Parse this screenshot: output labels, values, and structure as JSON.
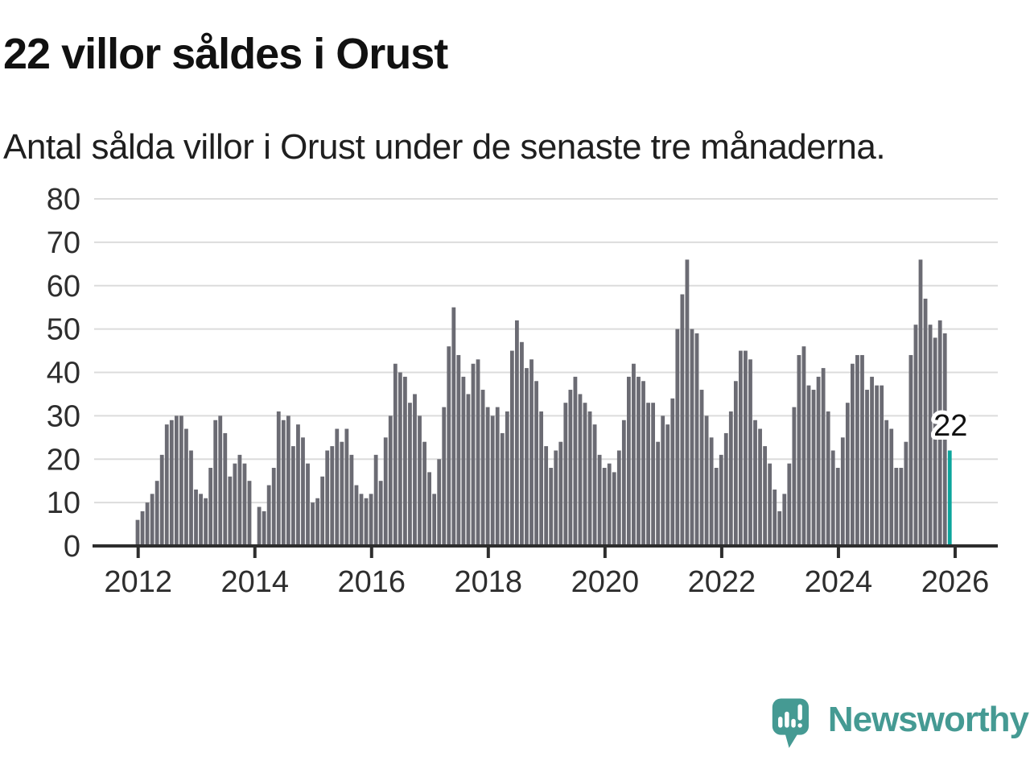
{
  "header": {
    "title": "22 villor såldes i Orust",
    "subtitle": "Antal sålda villor i Orust under de senaste tre månaderna."
  },
  "chart_data": {
    "type": "bar",
    "title": "22 villor såldes i Orust",
    "subtitle": "Antal sålda villor i Orust under de senaste tre månaderna.",
    "x_unit": "month",
    "x_start": "2012-01",
    "x_end": "2025-12",
    "x_tick_labels": [
      "2012",
      "2014",
      "2016",
      "2018",
      "2020",
      "2022",
      "2024",
      "2026"
    ],
    "y_ticks": [
      0,
      10,
      20,
      30,
      40,
      50,
      60,
      70,
      80
    ],
    "ylim": [
      0,
      80
    ],
    "grid": true,
    "legend": false,
    "values": [
      6,
      8,
      10,
      12,
      15,
      21,
      28,
      29,
      30,
      30,
      27,
      22,
      13,
      12,
      11,
      18,
      29,
      30,
      26,
      16,
      19,
      21,
      19,
      15,
      0,
      9,
      8,
      14,
      18,
      31,
      29,
      30,
      23,
      28,
      25,
      19,
      10,
      11,
      16,
      22,
      23,
      27,
      24,
      27,
      21,
      14,
      12,
      11,
      12,
      21,
      15,
      25,
      30,
      42,
      40,
      39,
      33,
      35,
      30,
      24,
      17,
      12,
      20,
      32,
      46,
      55,
      44,
      39,
      35,
      42,
      43,
      36,
      32,
      30,
      32,
      26,
      31,
      45,
      52,
      47,
      41,
      43,
      38,
      31,
      23,
      18,
      22,
      24,
      33,
      36,
      39,
      35,
      33,
      31,
      28,
      21,
      18,
      19,
      17,
      22,
      29,
      39,
      42,
      39,
      38,
      33,
      33,
      24,
      30,
      28,
      34,
      50,
      58,
      66,
      50,
      49,
      36,
      30,
      25,
      18,
      21,
      26,
      31,
      38,
      45,
      45,
      43,
      29,
      27,
      23,
      19,
      13,
      8,
      12,
      19,
      32,
      44,
      46,
      37,
      36,
      39,
      41,
      31,
      22,
      18,
      25,
      33,
      42,
      44,
      44,
      36,
      39,
      37,
      37,
      29,
      27,
      18,
      18,
      24,
      44,
      51,
      66,
      57,
      51,
      48,
      52,
      49,
      22
    ],
    "highlight_last_bar": true,
    "annotation": {
      "text": "22",
      "target": "last-bar"
    },
    "colors": {
      "bar": "#6b6b73",
      "highlight": "#0ca59c",
      "grid": "#dcdcdc",
      "axis": "#2e2e2e",
      "tick_label": "#2e2e2e",
      "annotation_text": "#111111",
      "annotation_halo": "#ffffff"
    }
  },
  "footer": {
    "brand": "Newsworthy",
    "brand_color": "#459a93",
    "logo_icon": "speech-bubble-bar-chart-exclamation"
  }
}
